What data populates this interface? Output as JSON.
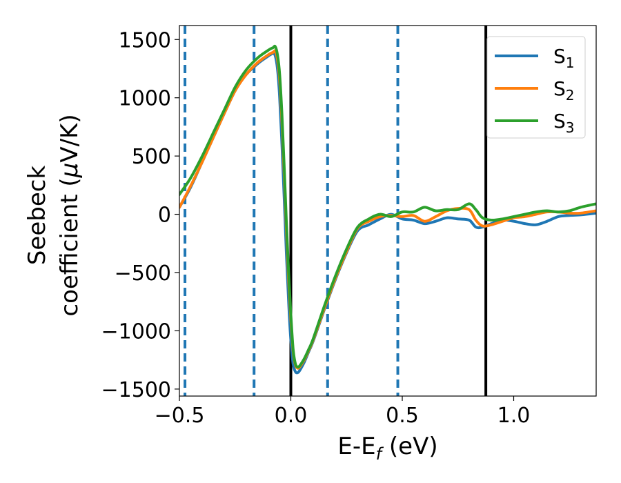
{
  "chart_data": {
    "type": "line",
    "title": "",
    "xlabel": "E-E",
    "xlabel_sub": "f",
    "xlabel_unit": " (eV)",
    "ylabel_line1": "Seebeck",
    "ylabel_line2": "coefficient  (",
    "ylabel_mu": "μ",
    "ylabel_unit": "V/K)",
    "xlim": [
      -0.5,
      1.37
    ],
    "ylim": [
      -1560,
      1620
    ],
    "xticks": [
      -0.5,
      0.0,
      0.5,
      1.0
    ],
    "xtick_labels": [
      "−0.5",
      "0.0",
      "0.5",
      "1.0"
    ],
    "yticks": [
      1500,
      1000,
      500,
      0,
      -500,
      -1000,
      -1500
    ],
    "ytick_labels": [
      "1500",
      "1000",
      "500",
      "0",
      "−500",
      "−1000",
      "−1500"
    ],
    "grid": false,
    "legend_position": "top-right",
    "vlines_solid": [
      0.0,
      0.875
    ],
    "vlines_dashed": [
      -0.475,
      -0.165,
      0.165,
      0.48
    ],
    "colors": {
      "solid_vline": "#000000",
      "dashed_vline": "#1f77b4"
    },
    "series": [
      {
        "name": "S",
        "name_sub": "1",
        "color": "#1f77b4",
        "x": [
          -0.5,
          -0.45,
          -0.4,
          -0.35,
          -0.3,
          -0.25,
          -0.2,
          -0.15,
          -0.1,
          -0.08,
          -0.07,
          -0.06,
          -0.05,
          -0.04,
          -0.03,
          -0.02,
          -0.01,
          0.0,
          0.01,
          0.02,
          0.03,
          0.04,
          0.06,
          0.08,
          0.1,
          0.15,
          0.2,
          0.25,
          0.3,
          0.35,
          0.4,
          0.45,
          0.5,
          0.55,
          0.6,
          0.65,
          0.7,
          0.75,
          0.8,
          0.83,
          0.86,
          0.9,
          0.95,
          1.0,
          1.05,
          1.1,
          1.15,
          1.2,
          1.25,
          1.3,
          1.37
        ],
        "y": [
          60,
          230,
          440,
          650,
          860,
          1060,
          1200,
          1290,
          1360,
          1380,
          1360,
          1250,
          1000,
          600,
          150,
          -330,
          -750,
          -1080,
          -1280,
          -1350,
          -1360,
          -1340,
          -1270,
          -1180,
          -1090,
          -820,
          -560,
          -330,
          -140,
          -90,
          -40,
          0,
          -40,
          -50,
          -80,
          -60,
          -30,
          -40,
          -50,
          -110,
          -110,
          -80,
          -50,
          -60,
          -80,
          -90,
          -60,
          -20,
          -10,
          -5,
          10
        ]
      },
      {
        "name": "S",
        "name_sub": "2",
        "color": "#ff7f0e",
        "x": [
          -0.5,
          -0.45,
          -0.4,
          -0.35,
          -0.3,
          -0.25,
          -0.2,
          -0.15,
          -0.1,
          -0.08,
          -0.07,
          -0.06,
          -0.05,
          -0.04,
          -0.03,
          -0.02,
          -0.01,
          0.0,
          0.01,
          0.02,
          0.03,
          0.04,
          0.06,
          0.08,
          0.1,
          0.15,
          0.2,
          0.25,
          0.3,
          0.35,
          0.4,
          0.45,
          0.5,
          0.55,
          0.6,
          0.65,
          0.7,
          0.75,
          0.8,
          0.83,
          0.86,
          0.9,
          0.95,
          1.0,
          1.05,
          1.1,
          1.15,
          1.2,
          1.25,
          1.3,
          1.37
        ],
        "y": [
          60,
          240,
          440,
          650,
          860,
          1060,
          1200,
          1300,
          1370,
          1390,
          1400,
          1330,
          1150,
          800,
          360,
          -120,
          -560,
          -900,
          -1170,
          -1290,
          -1320,
          -1310,
          -1250,
          -1170,
          -1080,
          -810,
          -550,
          -320,
          -120,
          -60,
          -20,
          -10,
          -20,
          -10,
          -60,
          -20,
          30,
          50,
          40,
          -50,
          -100,
          -90,
          -60,
          -30,
          -20,
          0,
          20,
          20,
          10,
          10,
          30
        ]
      },
      {
        "name": "S",
        "name_sub": "3",
        "color": "#2ca02c",
        "x": [
          -0.5,
          -0.45,
          -0.4,
          -0.35,
          -0.3,
          -0.25,
          -0.2,
          -0.15,
          -0.1,
          -0.08,
          -0.07,
          -0.06,
          -0.05,
          -0.04,
          -0.03,
          -0.02,
          -0.01,
          0.0,
          0.01,
          0.02,
          0.03,
          0.04,
          0.06,
          0.08,
          0.1,
          0.15,
          0.2,
          0.25,
          0.3,
          0.35,
          0.4,
          0.45,
          0.5,
          0.55,
          0.6,
          0.65,
          0.7,
          0.75,
          0.8,
          0.83,
          0.86,
          0.9,
          0.95,
          1.0,
          1.05,
          1.1,
          1.15,
          1.2,
          1.25,
          1.3,
          1.37
        ],
        "y": [
          170,
          310,
          490,
          690,
          890,
          1090,
          1240,
          1340,
          1410,
          1430,
          1440,
          1370,
          1200,
          860,
          420,
          -60,
          -500,
          -860,
          -1150,
          -1280,
          -1310,
          -1300,
          -1240,
          -1160,
          -1070,
          -790,
          -530,
          -300,
          -110,
          -40,
          0,
          -20,
          20,
          20,
          60,
          30,
          40,
          40,
          90,
          40,
          -30,
          -50,
          -40,
          -20,
          0,
          20,
          30,
          20,
          30,
          60,
          90
        ]
      }
    ]
  }
}
